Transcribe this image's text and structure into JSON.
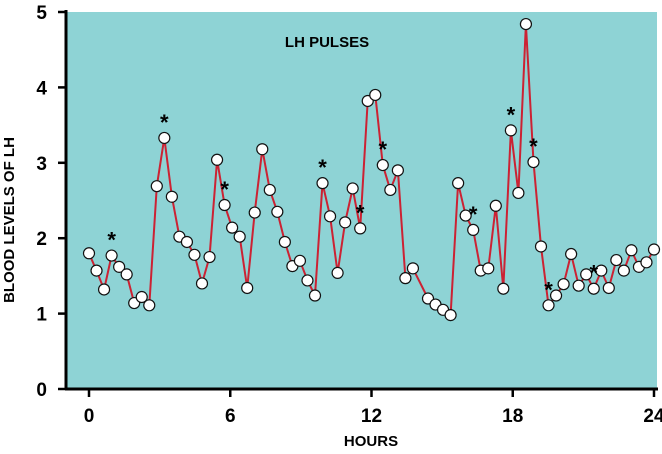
{
  "chart_data": {
    "type": "line",
    "title": "LH PULSES",
    "xlabel": "HOURS",
    "ylabel": "BLOOD LEVELS OF LH",
    "xlim": [
      -1.2,
      24
    ],
    "ylim": [
      0,
      5
    ],
    "x_ticks": [
      0,
      6,
      12,
      18,
      24
    ],
    "y_ticks": [
      0,
      1,
      2,
      3,
      4,
      5
    ],
    "grid": false,
    "colors": {
      "background": "#8ed3d5",
      "line": "#cc2233",
      "marker_fill": "#ffffff",
      "marker_edge": "#111111"
    },
    "pulse_marker": "*",
    "series": [
      {
        "x": [
          0.0,
          0.32,
          0.64,
          0.96,
          1.28,
          1.6,
          1.92,
          2.24,
          2.56,
          2.88,
          3.2,
          3.52,
          3.84,
          4.16,
          4.48,
          4.8,
          5.12,
          5.44,
          5.76,
          6.08,
          6.4,
          6.72,
          7.04,
          7.36,
          7.68,
          8.0,
          8.32,
          8.64,
          8.96,
          9.28,
          9.6,
          9.92,
          10.24,
          10.56,
          10.88,
          11.2,
          11.52,
          11.84,
          12.16,
          12.48,
          12.8,
          13.12,
          13.44,
          13.76,
          14.4,
          14.72,
          15.04,
          15.36,
          15.68,
          16.0,
          16.32,
          16.64,
          16.96,
          17.28,
          17.6,
          17.92,
          18.24,
          18.56,
          18.88,
          19.2,
          19.52,
          19.84,
          20.16,
          20.48,
          20.8,
          21.12,
          21.44,
          21.76,
          22.08,
          22.4,
          22.72,
          23.04,
          23.36,
          23.68,
          24.0
        ],
        "y": [
          1.8,
          1.57,
          1.32,
          1.77,
          1.62,
          1.52,
          1.14,
          1.22,
          1.11,
          2.69,
          3.33,
          2.55,
          2.02,
          1.95,
          1.78,
          1.4,
          1.75,
          3.04,
          2.44,
          2.14,
          2.02,
          1.34,
          2.34,
          3.18,
          2.64,
          2.35,
          1.95,
          1.63,
          1.7,
          1.44,
          1.24,
          2.73,
          2.29,
          1.54,
          2.21,
          2.66,
          2.13,
          3.82,
          3.9,
          2.97,
          2.64,
          2.9,
          1.47,
          1.6,
          1.2,
          1.12,
          1.05,
          0.98,
          2.73,
          2.3,
          2.11,
          1.57,
          1.6,
          2.43,
          1.33,
          3.43,
          2.6,
          4.84,
          3.01,
          1.89,
          1.11,
          1.24,
          1.39,
          1.79,
          1.37,
          1.52,
          1.33,
          1.57,
          1.34,
          1.71,
          1.57,
          1.84,
          1.62,
          1.68,
          1.85
        ]
      }
    ],
    "pulse_x": [
      0.96,
      3.2,
      5.76,
      9.92,
      11.52,
      12.48,
      16.32,
      17.92,
      18.88,
      19.52,
      21.44
    ]
  }
}
